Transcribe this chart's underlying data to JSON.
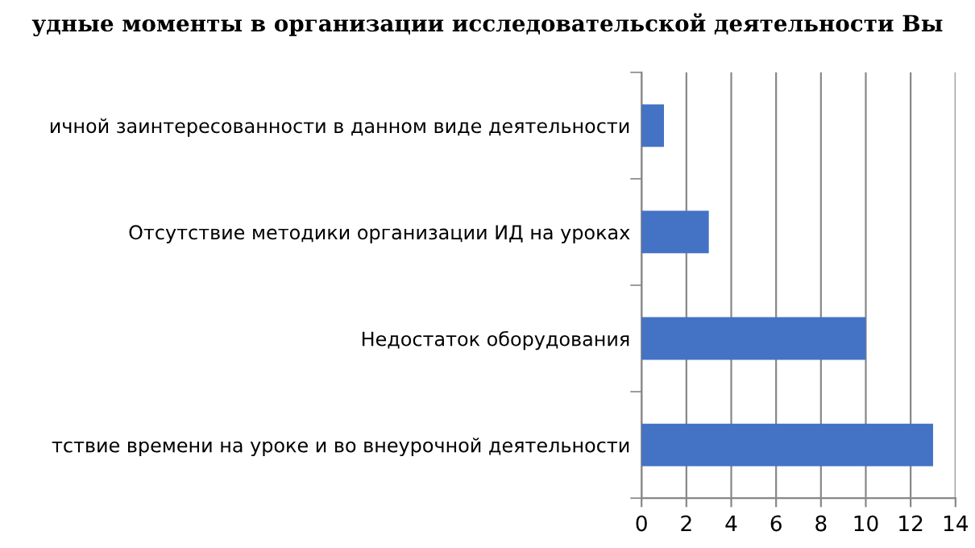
{
  "chart_data": {
    "type": "bar",
    "orientation": "horizontal",
    "title": "удные моменты в организации исследовательской деятельности Вы",
    "categories": [
      "ичной заинтересованности в данном виде деятельности",
      "Отсутствие методики организации ИД на уроках",
      "Недостаток оборудования",
      "тствие времени на уроке и во внеурочной деятельности"
    ],
    "values": [
      1,
      3,
      10,
      13
    ],
    "color": "#4472c4",
    "xlim": [
      0,
      14
    ],
    "xticks": [
      0,
      2,
      4,
      6,
      8,
      10,
      12,
      14
    ],
    "grid": "x",
    "legend": false
  }
}
